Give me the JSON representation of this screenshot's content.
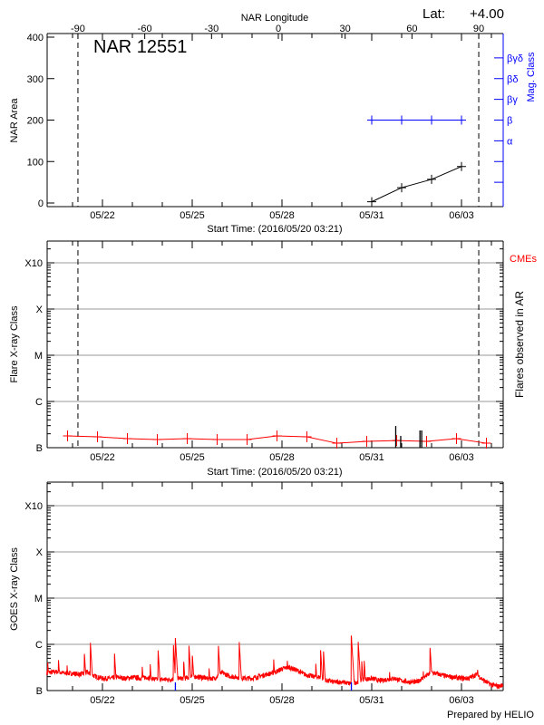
{
  "chart_data": [
    {
      "type": "line",
      "panel": "nar",
      "title": "NAR 12551",
      "latitude_label": "Lat:",
      "latitude_value": "+4.00",
      "top_axis_label": "NAR Longitude",
      "top_ticks": [
        -90,
        -60,
        -30,
        0,
        30,
        60,
        90
      ],
      "ylabel": "NAR Area",
      "ylim": [
        0,
        400
      ],
      "yticks": [
        0,
        100,
        200,
        300,
        400
      ],
      "right_axis_label": "Mag. Class",
      "right_axis_color": "#0000ff",
      "mag_class_ticks": [
        "",
        "",
        "α",
        "β",
        "βγ",
        "βδ",
        "βγδ"
      ],
      "xlabel": "Start Time: (2016/05/20 03:21)",
      "x_start": "2016-05-20T03:21",
      "x_ticks": [
        "05/22",
        "05/25",
        "05/28",
        "05/31",
        "06/03"
      ],
      "limb_lines_longitude": [
        -90,
        90
      ],
      "area_series": {
        "color": "#000000",
        "x": [
          "2016-05-31T00:00",
          "2016-06-01T00:00",
          "2016-06-02T00:00",
          "2016-06-03T00:00"
        ],
        "values": [
          3,
          37,
          57,
          88
        ]
      },
      "mag_class_series": {
        "color": "#0000ff",
        "x": [
          "2016-05-31T00:00",
          "2016-06-01T00:00",
          "2016-06-02T00:00",
          "2016-06-03T00:00"
        ],
        "values": [
          "β",
          "β",
          "β",
          "β"
        ]
      }
    },
    {
      "type": "line",
      "panel": "flares",
      "ylabel": "Flare X-ray Class",
      "yscale": "log",
      "ytick_labels": [
        "B",
        "C",
        "M",
        "X",
        "X10"
      ],
      "right_label": "Flares observed in AR",
      "cme_label": "CMEs",
      "cme_color": "#ff0000",
      "xlabel": "Start Time: (2016/05/20 03:21)",
      "x_ticks": [
        "05/22",
        "05/25",
        "05/28",
        "05/31",
        "06/03"
      ],
      "grid": true,
      "background_series": {
        "color": "#ff0000",
        "unit": "W/m^2",
        "x": [
          "2016-05-20T20:00",
          "2016-05-21T20:00",
          "2016-05-22T20:00",
          "2016-05-23T20:00",
          "2016-05-24T20:00",
          "2016-05-25T20:00",
          "2016-05-26T20:00",
          "2016-05-27T20:00",
          "2016-05-28T20:00",
          "2016-05-29T20:00",
          "2016-05-30T20:00",
          "2016-05-31T20:00",
          "2016-06-01T20:00",
          "2016-06-02T20:00",
          "2016-06-03T20:00"
        ],
        "values": [
          1.8e-07,
          1.72e-07,
          1.57e-07,
          1.5e-07,
          1.57e-07,
          1.5e-07,
          1.5e-07,
          1.8e-07,
          1.72e-07,
          1.25e-07,
          1.37e-07,
          1.43e-07,
          1.37e-07,
          1.57e-07,
          1.25e-07
        ]
      },
      "flares": {
        "color": "#000000",
        "x": [
          "2016-05-31T19:15",
          "2016-05-31T23:15",
          "2016-06-01T14:40",
          "2016-06-01T16:05"
        ],
        "values": [
          2.95e-07,
          1.8e-07,
          2.36e-07,
          2.36e-07
        ]
      }
    },
    {
      "type": "line",
      "panel": "goes",
      "ylabel": "GOES X-ray Class",
      "yscale": "log",
      "ytick_labels": [
        "B",
        "C",
        "M",
        "X",
        "X10"
      ],
      "x_ticks": [
        "05/22",
        "05/25",
        "05/28",
        "05/31",
        "06/03"
      ],
      "grid": true,
      "footer": "Prepared by HELIO",
      "series_color": "#ff0000",
      "marker_color": "#0000ff",
      "unit": "W/m^2",
      "baseline": {
        "x": [
          "2016-05-20T03:21",
          "2016-05-20T12:00",
          "2016-05-20T18:00",
          "2016-05-21T00:00",
          "2016-05-21T06:00",
          "2016-05-21T12:00",
          "2016-05-21T18:00",
          "2016-05-22T00:00",
          "2016-05-22T06:00",
          "2016-05-22T12:00",
          "2016-05-22T18:00",
          "2016-05-23T00:00",
          "2016-05-23T06:00",
          "2016-05-23T12:00",
          "2016-05-23T18:00",
          "2016-05-24T00:00",
          "2016-05-24T06:00",
          "2016-05-24T12:00",
          "2016-05-24T18:00",
          "2016-05-25T00:00",
          "2016-05-25T06:00",
          "2016-05-25T12:00",
          "2016-05-25T18:00",
          "2016-05-26T00:00",
          "2016-05-26T06:00",
          "2016-05-26T12:00",
          "2016-05-26T18:00",
          "2016-05-27T00:00",
          "2016-05-27T06:00",
          "2016-05-27T12:00",
          "2016-05-27T18:00",
          "2016-05-28T00:00",
          "2016-05-28T06:00",
          "2016-05-28T12:00",
          "2016-05-28T18:00",
          "2016-05-29T00:00",
          "2016-05-29T06:00",
          "2016-05-29T12:00",
          "2016-05-29T18:00",
          "2016-05-30T00:00",
          "2016-05-30T06:00",
          "2016-05-30T12:00",
          "2016-05-30T18:00",
          "2016-05-31T00:00",
          "2016-05-31T06:00",
          "2016-05-31T12:00",
          "2016-05-31T18:00",
          "2016-06-01T00:00",
          "2016-06-01T06:00",
          "2016-06-01T12:00",
          "2016-06-01T18:00",
          "2016-06-02T00:00",
          "2016-06-02T06:00",
          "2016-06-02T12:00",
          "2016-06-02T18:00",
          "2016-06-03T00:00",
          "2016-06-03T06:00",
          "2016-06-03T12:00",
          "2016-06-03T18:00",
          "2016-06-04T00:00",
          "2016-06-04T06:00",
          "2016-06-04T09:20"
        ],
        "values": [
          2.4e-07,
          2.5e-07,
          2.3e-07,
          2.3e-07,
          2.2e-07,
          2.4e-07,
          2e-07,
          1.8e-07,
          1.8e-07,
          1.9e-07,
          1.8e-07,
          1.9e-07,
          1.8e-07,
          1.9e-07,
          1.7e-07,
          1.7e-07,
          1.7e-07,
          1.8e-07,
          1.8e-07,
          2e-07,
          1.9e-07,
          1.8e-07,
          1.8e-07,
          2.4e-07,
          2e-07,
          1.9e-07,
          1.8e-07,
          1.8e-07,
          2e-07,
          2.2e-07,
          2.4e-07,
          2.9e-07,
          3.1e-07,
          2.7e-07,
          2.2e-07,
          2e-07,
          1.9e-07,
          1.6e-07,
          1.5e-07,
          1.5e-07,
          1.4e-07,
          1.5e-07,
          1.7e-07,
          1.8e-07,
          1.6e-07,
          1.7e-07,
          1.8e-07,
          1.6e-07,
          1.5e-07,
          1.5e-07,
          1.9e-07,
          2.4e-07,
          2.2e-07,
          2e-07,
          1.9e-07,
          1.8e-07,
          1.8e-07,
          2.2e-07,
          1.6e-07,
          1.3e-07,
          1.2e-07,
          1.3e-07
        ]
      },
      "peaks": {
        "x": [
          "2016-05-20T04:05",
          "2016-05-20T12:45",
          "2016-05-20T19:40",
          "2016-05-21T09:35",
          "2016-05-21T14:20",
          "2016-05-22T09:40",
          "2016-05-23T07:55",
          "2016-05-23T14:20",
          "2016-05-23T20:40",
          "2016-05-24T08:50",
          "2016-05-24T10:30",
          "2016-05-24T17:15",
          "2016-05-24T21:20",
          "2016-05-25T00:10",
          "2016-05-25T13:30",
          "2016-05-25T21:00",
          "2016-05-26T13:40",
          "2016-05-27T17:20",
          "2016-05-28T04:20",
          "2016-05-29T03:10",
          "2016-05-29T07:00",
          "2016-05-29T09:20",
          "2016-05-30T07:40",
          "2016-05-30T13:10",
          "2016-05-30T16:00",
          "2016-05-30T18:00",
          "2016-05-31T14:20",
          "2016-06-01T17:20",
          "2016-06-01T22:50",
          "2016-06-03T13:00"
        ],
        "values": [
          4.2e-07,
          4.6e-07,
          3.5e-07,
          6.2e-07,
          1.08e-06,
          6.4e-07,
          3.4e-07,
          3.7e-07,
          7.4e-07,
          1.05e-06,
          1.37e-06,
          4.2e-07,
          1e-06,
          5.7e-07,
          3.1e-07,
          9.4e-07,
          1.18e-06,
          4.9e-07,
          4.4e-07,
          3.8e-07,
          7.5e-07,
          7e-07,
          1.55e-06,
          1.13e-06,
          4.4e-07,
          4.4e-07,
          2.5e-07,
          2.7e-07,
          8.4e-07,
          2.8e-07
        ]
      },
      "markers": [
        "2016-05-24T10:30",
        "2016-05-30T07:40"
      ]
    }
  ]
}
